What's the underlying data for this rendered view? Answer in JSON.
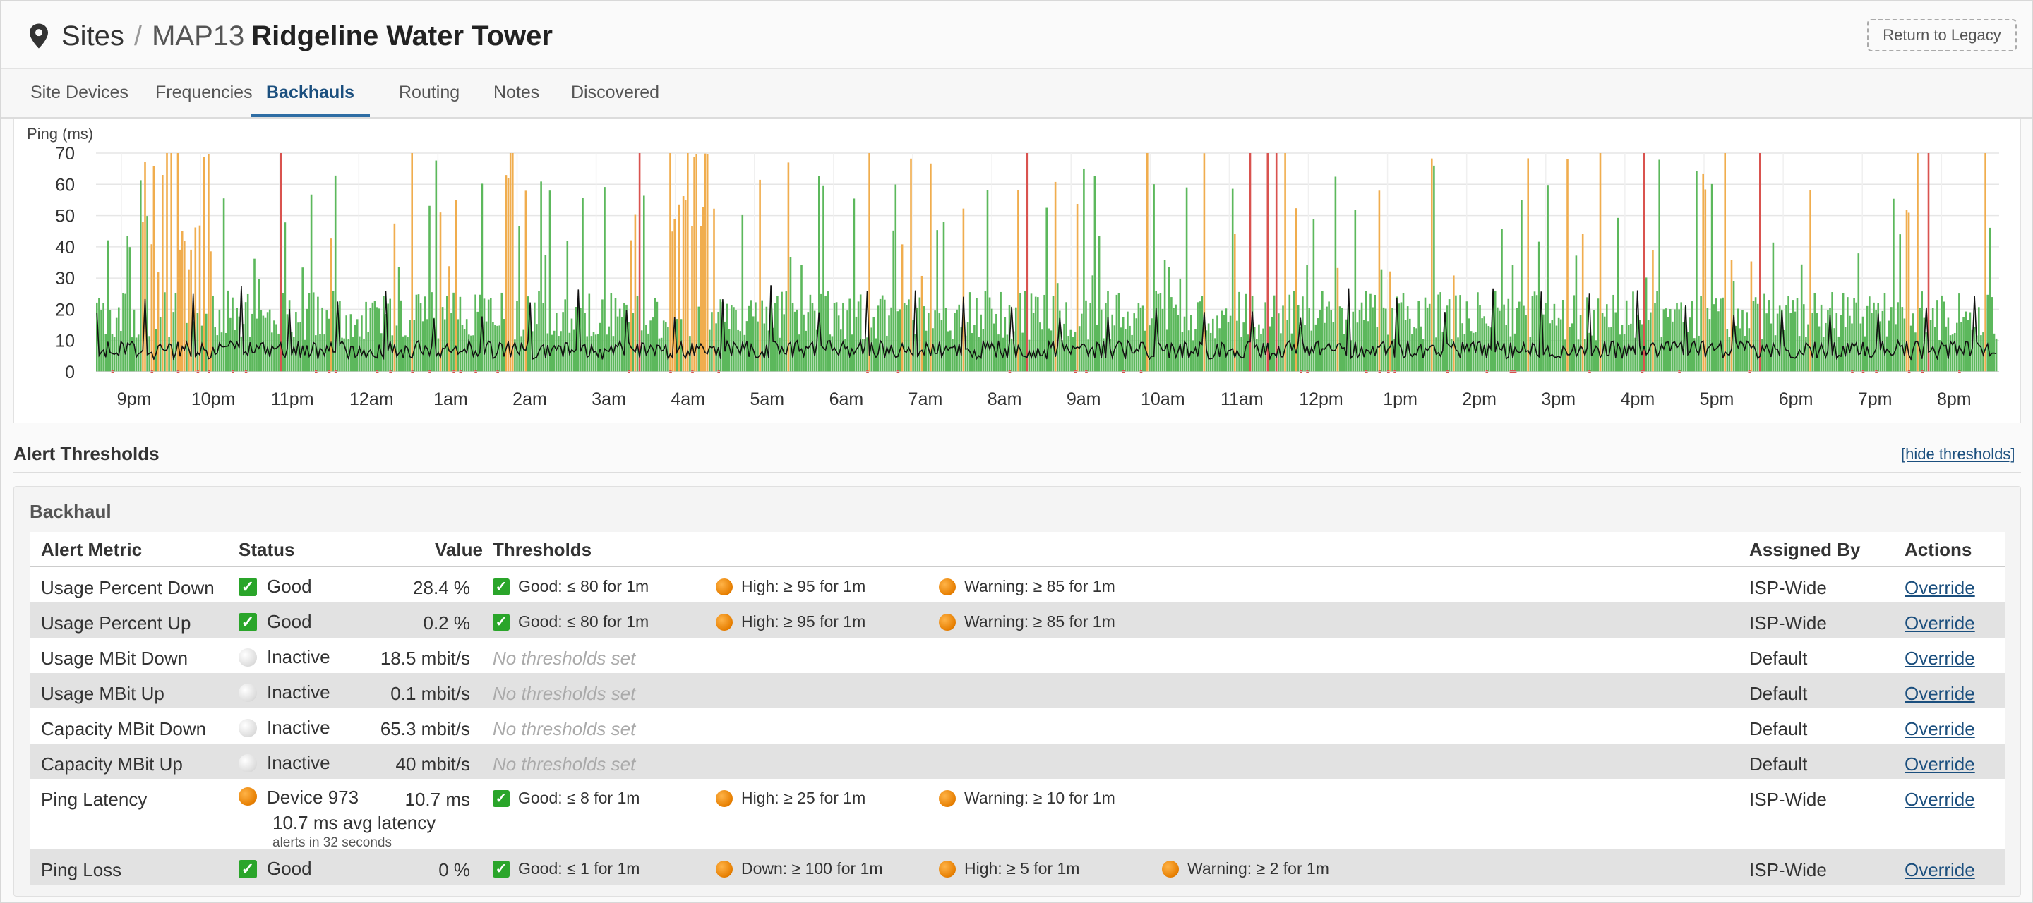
{
  "header": {
    "root_crumb": "Sites",
    "separator": "/",
    "site_code": "MAP13",
    "site_name": "Ridgeline Water Tower",
    "legacy_button": "Return to Legacy"
  },
  "tabs": [
    {
      "label": "Site Devices"
    },
    {
      "label": "Frequencies"
    },
    {
      "label": "Backhauls",
      "active": true
    },
    {
      "label": "Routing"
    },
    {
      "label": "Notes"
    },
    {
      "label": "Discovered"
    }
  ],
  "chart_data": {
    "type": "bar",
    "ylabel": "Ping (ms)",
    "ylim": [
      0,
      70
    ],
    "yticks": [
      0,
      10,
      20,
      30,
      40,
      50,
      60,
      70
    ],
    "xticks": [
      "9pm",
      "10pm",
      "11pm",
      "12am",
      "1am",
      "2am",
      "3am",
      "4am",
      "5am",
      "6am",
      "7am",
      "8am",
      "9am",
      "10am",
      "11am",
      "12pm",
      "1pm",
      "2pm",
      "3pm",
      "4pm",
      "5pm",
      "6pm",
      "7pm",
      "8pm"
    ],
    "series_colors": {
      "good": "#5cb85c",
      "high": "#f0ad4e",
      "critical": "#d9534f",
      "avg_line": "#111111"
    },
    "description_values": "approximately 24 hours of per-minute ping bars; green under ~25 ms, orange above, red spikes; black line is average latency around 5-15 ms"
  },
  "alerts": {
    "title": "Alert Thresholds",
    "hide_link": "[hide thresholds]",
    "panel_title": "Backhaul",
    "columns": {
      "metric": "Alert Metric",
      "status": "Status",
      "value": "Value",
      "thresholds": "Thresholds",
      "assigned": "Assigned By",
      "actions": "Actions"
    },
    "rows": [
      {
        "metric": "Usage Percent Down",
        "status": "Good",
        "status_icon": "check",
        "value": "28.4 %",
        "thresholds": [
          {
            "icon": "check",
            "text": "Good: ≤ 80 for 1m"
          },
          {
            "icon": "orange",
            "text": "High: ≥ 95 for 1m"
          },
          {
            "icon": "orange",
            "text": "Warning: ≥ 85 for 1m"
          }
        ],
        "assigned": "ISP-Wide",
        "action": "Override"
      },
      {
        "metric": "Usage Percent Up",
        "status": "Good",
        "status_icon": "check",
        "value": "0.2 %",
        "thresholds": [
          {
            "icon": "check",
            "text": "Good: ≤ 80 for 1m"
          },
          {
            "icon": "orange",
            "text": "High: ≥ 95 for 1m"
          },
          {
            "icon": "orange",
            "text": "Warning: ≥ 85 for 1m"
          }
        ],
        "assigned": "ISP-Wide",
        "action": "Override"
      },
      {
        "metric": "Usage MBit Down",
        "status": "Inactive",
        "status_icon": "grey",
        "value": "18.5 mbit/s",
        "none_text": "No thresholds set",
        "assigned": "Default",
        "action": "Override"
      },
      {
        "metric": "Usage MBit Up",
        "status": "Inactive",
        "status_icon": "grey",
        "value": "0.1 mbit/s",
        "none_text": "No thresholds set",
        "assigned": "Default",
        "action": "Override"
      },
      {
        "metric": "Capacity MBit Down",
        "status": "Inactive",
        "status_icon": "grey",
        "value": "65.3 mbit/s",
        "none_text": "No thresholds set",
        "assigned": "Default",
        "action": "Override"
      },
      {
        "metric": "Capacity MBit Up",
        "status": "Inactive",
        "status_icon": "grey",
        "value": "40 mbit/s",
        "none_text": "No thresholds set",
        "assigned": "Default",
        "action": "Override"
      },
      {
        "metric": "Ping Latency",
        "status": "Device 973",
        "status_line2": "10.7 ms avg latency",
        "status_line3": "alerts in 32 seconds",
        "status_icon": "orange",
        "value": "10.7 ms",
        "thresholds": [
          {
            "icon": "check",
            "text": "Good: ≤ 8 for 1m"
          },
          {
            "icon": "orange",
            "text": "High: ≥ 25 for 1m"
          },
          {
            "icon": "orange",
            "text": "Warning: ≥ 10 for 1m"
          }
        ],
        "assigned": "ISP-Wide",
        "action": "Override"
      },
      {
        "metric": "Ping Loss",
        "status": "Good",
        "status_icon": "check",
        "value": "0 %",
        "thresholds": [
          {
            "icon": "check",
            "text": "Good: ≤ 1 for 1m"
          },
          {
            "icon": "orange",
            "text": "Down: ≥ 100 for 1m"
          },
          {
            "icon": "orange",
            "text": "High: ≥ 5 for 1m"
          },
          {
            "icon": "orange",
            "text": "Warning: ≥ 2 for 1m"
          }
        ],
        "assigned": "ISP-Wide",
        "action": "Override"
      }
    ]
  }
}
